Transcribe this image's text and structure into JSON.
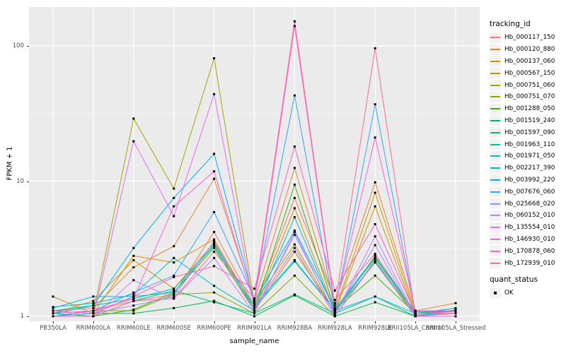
{
  "figure": {
    "y_axis": {
      "title": "FPKM + 1",
      "tick_labels": [
        "100",
        "10",
        "1"
      ]
    },
    "x_axis": {
      "title": "sample_name"
    },
    "legend": {
      "tracking_title": "tracking_id",
      "quant_title": "quant_status",
      "quant_label": "OK"
    },
    "colors": {
      "panel_bg": "#EBEBEB",
      "grid": "#FFFFFF",
      "axis_text": "#4D4D4D",
      "point": "#000000",
      "legend_key_bg": "#F2F2F2"
    }
  },
  "chart_data": {
    "type": "line",
    "title": "",
    "xlabel": "sample_name",
    "ylabel": "FPKM + 1",
    "y_scale": "log10",
    "ylim": [
      0.92,
      194
    ],
    "y_ticks": [
      1,
      10,
      100
    ],
    "y_minor_ticks": [
      3.1623,
      31.623
    ],
    "grid": true,
    "legend_position": "right",
    "point_shape": "black-square",
    "categories": [
      "PB350LA",
      "RRIM600LA",
      "RRIM600LE",
      "RRIM600SE",
      "RRIM600PE",
      "RRIM901LA",
      "RRIM928BA",
      "RRIM928LA",
      "RRIM928LE",
      "RRII105LA_Control",
      "RRII105LA_Stressed"
    ],
    "series": [
      {
        "name": "Hb_000117_150",
        "color": "#F8766D",
        "values": [
          1.05,
          1.1,
          1.3,
          1.45,
          4.2,
          1.2,
          7.5,
          1.32,
          2.9,
          1.05,
          1.1
        ]
      },
      {
        "name": "Hb_000120_880",
        "color": "#EA8331",
        "values": [
          1.1,
          1.15,
          2.3,
          3.3,
          10.4,
          1.3,
          12.5,
          1.25,
          9.8,
          1.1,
          1.25
        ]
      },
      {
        "name": "Hb_000137_060",
        "color": "#D89000",
        "values": [
          1.4,
          1.05,
          2.8,
          2.5,
          3.7,
          1.15,
          6.3,
          1.1,
          8.2,
          1.05,
          1.15
        ]
      },
      {
        "name": "Hb_000567_150",
        "color": "#C09B00",
        "values": [
          1.05,
          1.3,
          2.6,
          1.6,
          3.5,
          1.1,
          3.0,
          1.08,
          6.5,
          1.02,
          1.1
        ]
      },
      {
        "name": "Hb_000751_060",
        "color": "#A3A500",
        "values": [
          1.0,
          1.05,
          29.0,
          8.8,
          81.0,
          1.25,
          3.4,
          1.05,
          2.8,
          1.0,
          1.05
        ]
      },
      {
        "name": "Hb_000751_070",
        "color": "#7CAE00",
        "values": [
          1.0,
          1.1,
          1.1,
          1.45,
          1.5,
          1.05,
          2.0,
          1.0,
          2.6,
          1.0,
          1.0
        ]
      },
      {
        "name": "Hb_001288_050",
        "color": "#39B600",
        "values": [
          1.0,
          1.0,
          1.12,
          1.5,
          3.2,
          1.1,
          9.4,
          1.12,
          2.0,
          1.05,
          1.1
        ]
      },
      {
        "name": "Hb_001519_240",
        "color": "#00BB4E",
        "values": [
          1.0,
          1.05,
          1.05,
          1.15,
          1.3,
          1.0,
          1.43,
          1.0,
          1.27,
          1.0,
          1.05
        ]
      },
      {
        "name": "Hb_001597_090",
        "color": "#00BF7D",
        "values": [
          1.05,
          1.0,
          1.3,
          1.55,
          1.27,
          1.05,
          1.45,
          1.05,
          1.4,
          1.0,
          1.0
        ]
      },
      {
        "name": "Hb_001963_110",
        "color": "#00C1A3",
        "values": [
          1.1,
          1.2,
          1.35,
          1.6,
          3.3,
          1.15,
          2.55,
          1.1,
          2.7,
          1.05,
          1.1
        ]
      },
      {
        "name": "Hb_001971_050",
        "color": "#00BFC4",
        "values": [
          1.17,
          1.25,
          1.45,
          2.7,
          1.68,
          1.1,
          5.4,
          1.08,
          2.5,
          1.0,
          1.12
        ]
      },
      {
        "name": "Hb_002217_390",
        "color": "#00BAE0",
        "values": [
          1.15,
          1.4,
          1.4,
          1.5,
          3.4,
          1.2,
          2.6,
          1.1,
          1.4,
          1.05,
          1.15
        ]
      },
      {
        "name": "Hb_003992_220",
        "color": "#00B0F6",
        "values": [
          1.05,
          1.2,
          3.2,
          7.5,
          15.9,
          1.3,
          4.3,
          1.13,
          2.75,
          1.08,
          1.1
        ]
      },
      {
        "name": "Hb_007676_060",
        "color": "#35A2FF",
        "values": [
          1.0,
          1.1,
          1.5,
          2.0,
          5.9,
          1.35,
          43.0,
          1.1,
          37.0,
          1.05,
          1.05
        ]
      },
      {
        "name": "Hb_025668_020",
        "color": "#9590FF",
        "values": [
          1.0,
          1.05,
          1.2,
          1.4,
          3.6,
          1.1,
          4.0,
          1.05,
          3.36,
          1.0,
          1.05
        ]
      },
      {
        "name": "Hb_060152_010",
        "color": "#C77CFF",
        "values": [
          1.0,
          1.0,
          1.85,
          1.35,
          2.7,
          1.05,
          4.2,
          1.02,
          3.9,
          1.0,
          1.0
        ]
      },
      {
        "name": "Hb_135554_010",
        "color": "#E76BF3",
        "values": [
          1.0,
          1.0,
          19.7,
          5.5,
          44.0,
          1.15,
          3.2,
          1.0,
          2.55,
          1.0,
          1.0
        ]
      },
      {
        "name": "Hb_146930_010",
        "color": "#FA62DB",
        "values": [
          1.05,
          1.1,
          1.35,
          6.5,
          11.8,
          1.25,
          140.0,
          1.15,
          21.0,
          1.1,
          1.1
        ]
      },
      {
        "name": "Hb_170878_060",
        "color": "#FF62BC",
        "values": [
          1.1,
          1.05,
          1.4,
          1.95,
          2.35,
          1.6,
          18.0,
          1.55,
          4.8,
          1.05,
          1.08
        ]
      },
      {
        "name": "Hb_172939_010",
        "color": "#FF6A98",
        "values": [
          1.0,
          1.0,
          1.3,
          1.35,
          3.0,
          1.35,
          152.0,
          1.2,
          96.0,
          1.02,
          1.05
        ]
      }
    ],
    "point_legend": {
      "title": "quant_status",
      "label": "OK"
    }
  }
}
